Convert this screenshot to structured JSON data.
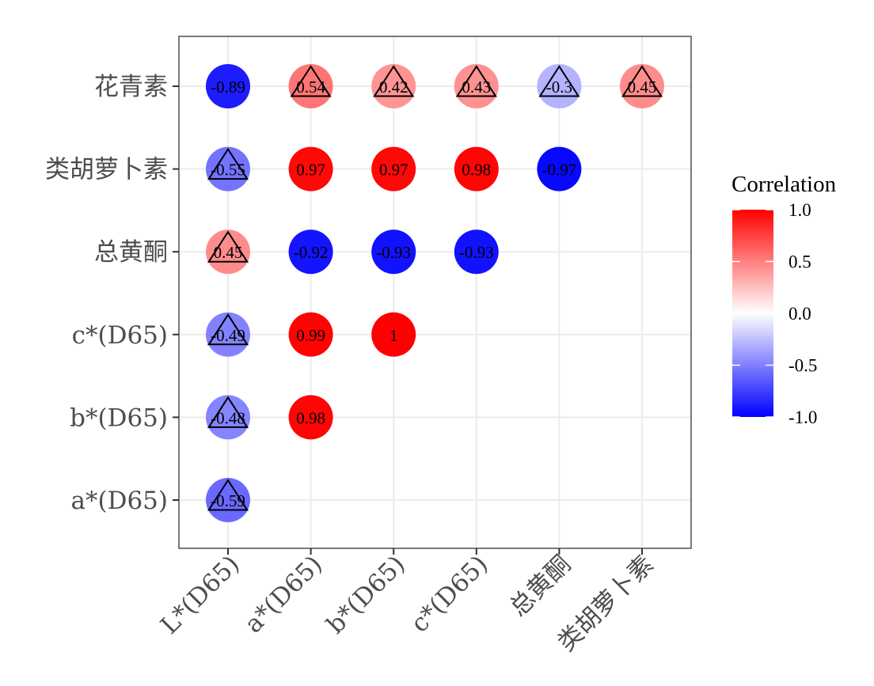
{
  "chart_data": {
    "type": "heatmap",
    "title": "",
    "xlabel": "",
    "ylabel": "",
    "x_categories": [
      "L*(D65)",
      "a*(D65)",
      "b*(D65)",
      "c*(D65)",
      "总黄酮",
      "类胡萝卜素"
    ],
    "y_categories": [
      "花青素",
      "类胡萝卜素",
      "总黄酮",
      "c*(D65)",
      "b*(D65)",
      "a*(D65)"
    ],
    "cells": [
      {
        "x": "L*(D65)",
        "y": "花青素",
        "value": -0.89,
        "label": "-0.89",
        "triangle": false
      },
      {
        "x": "a*(D65)",
        "y": "花青素",
        "value": 0.54,
        "label": "0.54",
        "triangle": true
      },
      {
        "x": "b*(D65)",
        "y": "花青素",
        "value": 0.42,
        "label": "0.42",
        "triangle": true
      },
      {
        "x": "c*(D65)",
        "y": "花青素",
        "value": 0.43,
        "label": "0.43",
        "triangle": true
      },
      {
        "x": "总黄酮",
        "y": "花青素",
        "value": -0.3,
        "label": "-0.3",
        "triangle": true
      },
      {
        "x": "类胡萝卜素",
        "y": "花青素",
        "value": 0.45,
        "label": "0.45",
        "triangle": true
      },
      {
        "x": "L*(D65)",
        "y": "类胡萝卜素",
        "value": -0.55,
        "label": "-0.55",
        "triangle": true
      },
      {
        "x": "a*(D65)",
        "y": "类胡萝卜素",
        "value": 0.97,
        "label": "0.97",
        "triangle": false
      },
      {
        "x": "b*(D65)",
        "y": "类胡萝卜素",
        "value": 0.97,
        "label": "0.97",
        "triangle": false
      },
      {
        "x": "c*(D65)",
        "y": "类胡萝卜素",
        "value": 0.98,
        "label": "0.98",
        "triangle": false
      },
      {
        "x": "总黄酮",
        "y": "类胡萝卜素",
        "value": -0.97,
        "label": "-0.97",
        "triangle": false
      },
      {
        "x": "L*(D65)",
        "y": "总黄酮",
        "value": 0.45,
        "label": "0.45",
        "triangle": true
      },
      {
        "x": "a*(D65)",
        "y": "总黄酮",
        "value": -0.92,
        "label": "-0.92",
        "triangle": false
      },
      {
        "x": "b*(D65)",
        "y": "总黄酮",
        "value": -0.93,
        "label": "-0.93",
        "triangle": false
      },
      {
        "x": "c*(D65)",
        "y": "总黄酮",
        "value": -0.93,
        "label": "-0.93",
        "triangle": false
      },
      {
        "x": "L*(D65)",
        "y": "c*(D65)",
        "value": -0.49,
        "label": "-0.49",
        "triangle": true
      },
      {
        "x": "a*(D65)",
        "y": "c*(D65)",
        "value": 0.99,
        "label": "0.99",
        "triangle": false
      },
      {
        "x": "b*(D65)",
        "y": "c*(D65)",
        "value": 1.0,
        "label": "1",
        "triangle": false
      },
      {
        "x": "L*(D65)",
        "y": "b*(D65)",
        "value": -0.48,
        "label": "-0.48",
        "triangle": true
      },
      {
        "x": "a*(D65)",
        "y": "b*(D65)",
        "value": 0.98,
        "label": "0.98",
        "triangle": false
      },
      {
        "x": "L*(D65)",
        "y": "a*(D65)",
        "value": -0.59,
        "label": "-0.59",
        "triangle": true
      }
    ],
    "legend": {
      "title": "Correlation",
      "position": "right",
      "limits": [
        -1.0,
        1.0
      ],
      "breaks": [
        1.0,
        0.5,
        0.0,
        -0.5,
        -1.0
      ],
      "break_labels": [
        "1.0",
        "0.5",
        "0.0",
        "-0.5",
        "-1.0"
      ],
      "colors": {
        "low": "#0000ff",
        "mid": "#ffffff",
        "high": "#ff0000"
      }
    },
    "grid": true,
    "panel_border": true
  }
}
